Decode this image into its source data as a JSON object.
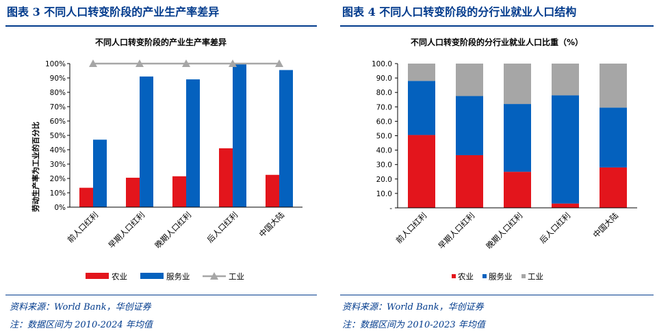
{
  "left": {
    "figure_title": "图表 3   不同人口转变阶段的产业生产率差异",
    "source": "资料来源：World Bank，华创证券",
    "note": "注：数据区间为 2010-2024 年均值",
    "chart_data": {
      "type": "bar",
      "title": "不同人口转变阶段的产业生产率差异",
      "ylabel": "劳动生产率为工业的百分比",
      "xlabel": "",
      "ylim": [
        0,
        100
      ],
      "y_ticks": [
        "0%",
        "10%",
        "20%",
        "30%",
        "40%",
        "50%",
        "60%",
        "70%",
        "80%",
        "90%",
        "100%"
      ],
      "categories": [
        "前人口红利",
        "早期人口红利",
        "晚期人口红利",
        "后人口红利",
        "中国大陆"
      ],
      "series": [
        {
          "name": "农业",
          "kind": "bar",
          "color": "#e3151c",
          "values": [
            13.5,
            20.5,
            21.5,
            41,
            22.5
          ]
        },
        {
          "name": "服务业",
          "kind": "bar",
          "color": "#0461be",
          "values": [
            47,
            91,
            89,
            99.5,
            95.5
          ]
        },
        {
          "name": "工业",
          "kind": "line",
          "color": "#a6a6a6",
          "values": [
            100,
            100,
            100,
            100,
            100
          ]
        }
      ],
      "legend": [
        "农业",
        "服务业",
        "工业"
      ],
      "legend_position": "bottom",
      "grid": false
    }
  },
  "right": {
    "figure_title": "图表 4   不同人口转变阶段的分行业就业人口结构",
    "source": "资料来源：World Bank，华创证券",
    "note": "注：数据区间为 2010-2023 年均值",
    "chart_data": {
      "type": "bar",
      "stacked": true,
      "title": "不同人口转变阶段的分行业就业人口比重（%）",
      "xlabel": "",
      "ylabel": "",
      "ylim": [
        0,
        100
      ],
      "y_ticks": [
        "-",
        "10.0",
        "20.0",
        "30.0",
        "40.0",
        "50.0",
        "60.0",
        "70.0",
        "80.0",
        "90.0",
        "100.0"
      ],
      "categories": [
        "前人口红利",
        "早期人口红利",
        "晚期人口红利",
        "后人口红利",
        "中国大陆"
      ],
      "series": [
        {
          "name": "农业",
          "color": "#e3151c",
          "values": [
            50.5,
            36.5,
            25,
            3,
            28
          ]
        },
        {
          "name": "服务业",
          "color": "#0461be",
          "values": [
            37.5,
            41,
            47,
            75,
            41.5
          ]
        },
        {
          "name": "工业",
          "color": "#a6a6a6",
          "values": [
            12,
            22.5,
            28,
            22,
            30.5
          ]
        }
      ],
      "legend": [
        "农业",
        "服务业",
        "工业"
      ],
      "legend_position": "bottom",
      "grid": false
    }
  }
}
